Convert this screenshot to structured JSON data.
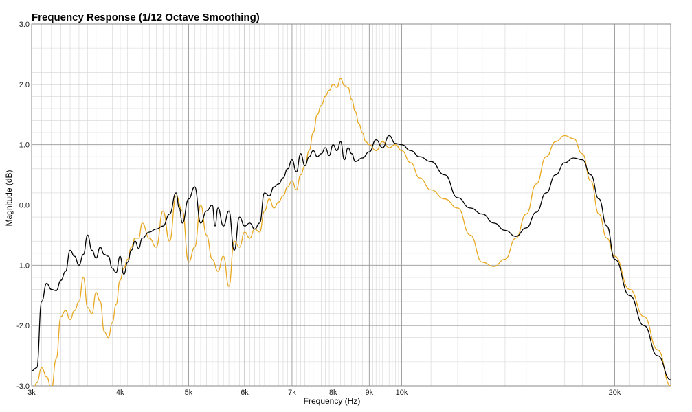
{
  "chart_data": {
    "type": "line",
    "title": "Frequency Response (1/12 Octave Smoothing)",
    "xlabel": "Frequency (Hz)",
    "ylabel": "Magnitude (dB)",
    "x_scale": "log",
    "xlim": [
      3000,
      24000
    ],
    "ylim": [
      -3.0,
      3.0
    ],
    "x_ticks": [
      {
        "value": 3000,
        "label": "3k"
      },
      {
        "value": 4000,
        "label": "4k"
      },
      {
        "value": 5000,
        "label": "5k"
      },
      {
        "value": 6000,
        "label": "6k"
      },
      {
        "value": 7000,
        "label": "7k"
      },
      {
        "value": 8000,
        "label": "8k"
      },
      {
        "value": 9000,
        "label": "9k"
      },
      {
        "value": 10000,
        "label": "10k"
      },
      {
        "value": 20000,
        "label": "20k"
      }
    ],
    "y_ticks": [
      {
        "value": 3.0,
        "label": "3.0"
      },
      {
        "value": 2.0,
        "label": "2.0"
      },
      {
        "value": 1.0,
        "label": "1.0"
      },
      {
        "value": 0.0,
        "label": "0.0"
      },
      {
        "value": -1.0,
        "label": "-1.0"
      },
      {
        "value": -2.0,
        "label": "-2.0"
      },
      {
        "value": -3.0,
        "label": "-3.0"
      }
    ],
    "grid": true,
    "series": [
      {
        "color": "#000000",
        "points": [
          [
            3000,
            -2.75
          ],
          [
            3050,
            -2.7
          ],
          [
            3100,
            -1.6
          ],
          [
            3150,
            -1.3
          ],
          [
            3200,
            -1.4
          ],
          [
            3250,
            -1.42
          ],
          [
            3300,
            -1.25
          ],
          [
            3350,
            -1.1
          ],
          [
            3400,
            -0.75
          ],
          [
            3450,
            -0.85
          ],
          [
            3500,
            -1.0
          ],
          [
            3550,
            -0.82
          ],
          [
            3600,
            -0.5
          ],
          [
            3650,
            -0.75
          ],
          [
            3700,
            -0.88
          ],
          [
            3750,
            -0.7
          ],
          [
            3800,
            -0.82
          ],
          [
            3850,
            -0.85
          ],
          [
            3900,
            -1.05
          ],
          [
            3950,
            -1.12
          ],
          [
            4000,
            -0.85
          ],
          [
            4050,
            -1.15
          ],
          [
            4100,
            -0.95
          ],
          [
            4150,
            -0.75
          ],
          [
            4200,
            -0.6
          ],
          [
            4250,
            -0.72
          ],
          [
            4300,
            -0.55
          ],
          [
            4400,
            -0.45
          ],
          [
            4500,
            -0.4
          ],
          [
            4600,
            -0.35
          ],
          [
            4700,
            -0.15
          ],
          [
            4800,
            0.2
          ],
          [
            4850,
            -0.05
          ],
          [
            4900,
            -0.3
          ],
          [
            5000,
            0.1
          ],
          [
            5100,
            0.3
          ],
          [
            5200,
            -0.3
          ],
          [
            5300,
            -0.1
          ],
          [
            5400,
            0.0
          ],
          [
            5450,
            -0.35
          ],
          [
            5500,
            -0.05
          ],
          [
            5600,
            -0.35
          ],
          [
            5700,
            -0.1
          ],
          [
            5800,
            -0.75
          ],
          [
            5900,
            -0.2
          ],
          [
            6000,
            -0.35
          ],
          [
            6100,
            -0.3
          ],
          [
            6200,
            -0.4
          ],
          [
            6300,
            -0.3
          ],
          [
            6400,
            0.2
          ],
          [
            6500,
            0.15
          ],
          [
            6600,
            0.3
          ],
          [
            6700,
            0.35
          ],
          [
            6800,
            0.45
          ],
          [
            6900,
            0.6
          ],
          [
            7000,
            0.75
          ],
          [
            7100,
            0.55
          ],
          [
            7200,
            0.85
          ],
          [
            7300,
            0.65
          ],
          [
            7400,
            0.8
          ],
          [
            7500,
            0.9
          ],
          [
            7600,
            0.8
          ],
          [
            7700,
            0.85
          ],
          [
            7800,
            0.95
          ],
          [
            7900,
            0.82
          ],
          [
            8000,
            1.0
          ],
          [
            8100,
            0.9
          ],
          [
            8200,
            1.05
          ],
          [
            8300,
            0.75
          ],
          [
            8400,
            0.95
          ],
          [
            8500,
            0.85
          ],
          [
            8600,
            0.72
          ],
          [
            8800,
            0.78
          ],
          [
            9000,
            0.88
          ],
          [
            9200,
            1.08
          ],
          [
            9400,
            0.95
          ],
          [
            9600,
            1.15
          ],
          [
            9800,
            1.02
          ],
          [
            10000,
            1.0
          ],
          [
            10300,
            0.9
          ],
          [
            10600,
            0.8
          ],
          [
            11000,
            0.72
          ],
          [
            11500,
            0.5
          ],
          [
            12000,
            0.12
          ],
          [
            12500,
            -0.05
          ],
          [
            13000,
            -0.15
          ],
          [
            13500,
            -0.3
          ],
          [
            14000,
            -0.42
          ],
          [
            14500,
            -0.52
          ],
          [
            15000,
            -0.38
          ],
          [
            15500,
            -0.12
          ],
          [
            16000,
            0.2
          ],
          [
            16500,
            0.5
          ],
          [
            17000,
            0.7
          ],
          [
            17500,
            0.78
          ],
          [
            18000,
            0.75
          ],
          [
            18500,
            0.5
          ],
          [
            19000,
            0.1
          ],
          [
            19500,
            -0.35
          ],
          [
            20000,
            -0.9
          ],
          [
            21000,
            -1.5
          ],
          [
            22000,
            -2.0
          ],
          [
            23000,
            -2.5
          ],
          [
            24000,
            -2.9
          ]
        ]
      },
      {
        "color": "#e8a820",
        "points": [
          [
            3000,
            -3.2
          ],
          [
            3050,
            -2.95
          ],
          [
            3100,
            -2.7
          ],
          [
            3150,
            -2.85
          ],
          [
            3200,
            -3.05
          ],
          [
            3250,
            -2.55
          ],
          [
            3300,
            -1.85
          ],
          [
            3350,
            -1.75
          ],
          [
            3400,
            -1.9
          ],
          [
            3450,
            -1.75
          ],
          [
            3500,
            -1.6
          ],
          [
            3550,
            -1.2
          ],
          [
            3600,
            -1.7
          ],
          [
            3650,
            -1.8
          ],
          [
            3700,
            -1.45
          ],
          [
            3750,
            -1.6
          ],
          [
            3800,
            -2.1
          ],
          [
            3850,
            -2.2
          ],
          [
            3900,
            -1.95
          ],
          [
            3950,
            -1.65
          ],
          [
            4000,
            -1.25
          ],
          [
            4050,
            -1.05
          ],
          [
            4100,
            -0.9
          ],
          [
            4150,
            -0.7
          ],
          [
            4200,
            -0.55
          ],
          [
            4250,
            -0.55
          ],
          [
            4300,
            -0.3
          ],
          [
            4400,
            -0.55
          ],
          [
            4500,
            -0.7
          ],
          [
            4600,
            -0.1
          ],
          [
            4700,
            -0.6
          ],
          [
            4800,
            0.15
          ],
          [
            4900,
            -0.1
          ],
          [
            5000,
            -0.95
          ],
          [
            5100,
            -0.7
          ],
          [
            5200,
            0.0
          ],
          [
            5300,
            -0.5
          ],
          [
            5400,
            -0.9
          ],
          [
            5500,
            -1.1
          ],
          [
            5600,
            -0.85
          ],
          [
            5700,
            -1.35
          ],
          [
            5800,
            -0.6
          ],
          [
            5900,
            -0.7
          ],
          [
            6000,
            -0.45
          ],
          [
            6100,
            -0.55
          ],
          [
            6200,
            -0.4
          ],
          [
            6300,
            -0.45
          ],
          [
            6400,
            -0.1
          ],
          [
            6500,
            0.1
          ],
          [
            6600,
            -0.05
          ],
          [
            6700,
            0.05
          ],
          [
            6800,
            0.15
          ],
          [
            6900,
            0.3
          ],
          [
            7000,
            0.4
          ],
          [
            7100,
            0.25
          ],
          [
            7200,
            0.5
          ],
          [
            7300,
            0.65
          ],
          [
            7400,
            0.9
          ],
          [
            7500,
            1.2
          ],
          [
            7600,
            1.5
          ],
          [
            7700,
            1.65
          ],
          [
            7800,
            1.8
          ],
          [
            7900,
            1.9
          ],
          [
            8000,
            2.0
          ],
          [
            8100,
            1.95
          ],
          [
            8200,
            2.1
          ],
          [
            8300,
            1.98
          ],
          [
            8400,
            1.95
          ],
          [
            8500,
            1.75
          ],
          [
            8600,
            1.55
          ],
          [
            8700,
            1.35
          ],
          [
            8800,
            1.2
          ],
          [
            8900,
            1.05
          ],
          [
            9000,
            1.0
          ],
          [
            9200,
            0.9
          ],
          [
            9400,
            1.05
          ],
          [
            9600,
            0.95
          ],
          [
            9800,
            1.0
          ],
          [
            10000,
            0.9
          ],
          [
            10300,
            0.7
          ],
          [
            10600,
            0.45
          ],
          [
            11000,
            0.25
          ],
          [
            11500,
            0.1
          ],
          [
            12000,
            -0.05
          ],
          [
            12500,
            -0.5
          ],
          [
            13000,
            -0.95
          ],
          [
            13500,
            -1.02
          ],
          [
            14000,
            -0.9
          ],
          [
            14500,
            -0.55
          ],
          [
            15000,
            -0.15
          ],
          [
            15500,
            0.35
          ],
          [
            16000,
            0.8
          ],
          [
            16500,
            1.05
          ],
          [
            17000,
            1.15
          ],
          [
            17500,
            1.1
          ],
          [
            18000,
            0.85
          ],
          [
            18500,
            0.4
          ],
          [
            19000,
            -0.15
          ],
          [
            19500,
            -0.55
          ],
          [
            20000,
            -0.85
          ],
          [
            21000,
            -1.4
          ],
          [
            22000,
            -1.85
          ],
          [
            23000,
            -2.4
          ],
          [
            24000,
            -3.0
          ]
        ]
      }
    ]
  }
}
